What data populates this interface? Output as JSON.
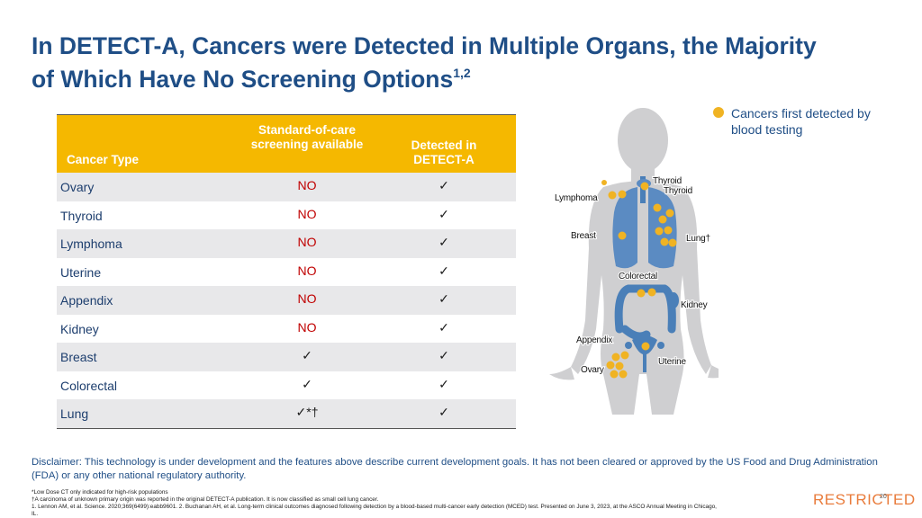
{
  "title": "In DETECT-A, Cancers were Detected in Multiple Organs, the Majority of Which Have No Screening Options",
  "title_sup": "1,2",
  "table": {
    "headers": {
      "type": "Cancer Type",
      "soc": "Standard-of-care screening available",
      "detected": "Detected in DETECT-A"
    },
    "rows": [
      {
        "type": "Ovary",
        "soc": "NO",
        "detected": "✓"
      },
      {
        "type": "Thyroid",
        "soc": "NO",
        "detected": "✓"
      },
      {
        "type": "Lymphoma",
        "soc": "NO",
        "detected": "✓"
      },
      {
        "type": "Uterine",
        "soc": "NO",
        "detected": "✓"
      },
      {
        "type": "Appendix",
        "soc": "NO",
        "detected": "✓"
      },
      {
        "type": "Kidney",
        "soc": "NO",
        "detected": "✓"
      },
      {
        "type": "Breast",
        "soc": "✓",
        "detected": "✓"
      },
      {
        "type": "Colorectal",
        "soc": "✓",
        "detected": "✓"
      },
      {
        "type": "Lung",
        "soc": "✓*†",
        "detected": "✓"
      }
    ]
  },
  "legend": {
    "text": "Cancers first detected by blood testing",
    "dot_color": "#f0b323"
  },
  "figure_labels": {
    "thyroid_1": "Thyroid",
    "thyroid_2": "Thyroid",
    "lymphoma": "Lymphoma",
    "breast": "Breast",
    "lung": "Lung†",
    "colorectal": "Colorectal",
    "kidney": "Kidney",
    "appendix": "Appendix",
    "uterine": "Uterine",
    "ovary": "Ovary"
  },
  "disclaimer": "Disclaimer: This technology is under development and the features above describe current development goals. It has not been cleared or approved by the US Food and Drug Administration (FDA) or any other national regulatory authority.",
  "footnotes": {
    "f1": "*Low Dose CT only indicated for high-risk populations",
    "f2": "†A carcinoma of unknown primary origin was reported in the original DETECT-A publication. It is now classified as small cell lung cancer.",
    "f3": "1. Lennon AM, et al. Science. 2020;369(6499):eabb9601.  2. Buchanan AH, et al. Long-term clinical outcomes diagnosed following detection by a blood-based multi-cancer early detection (MCED) test. Presented on June 3, 2023, at the ASCO Annual Meeting in Chicago,",
    "f4": "IL."
  },
  "restricted": "RESTRICTED",
  "page_number": "20",
  "colors": {
    "title": "#1f4e86",
    "header_bg": "#f5b800",
    "no_red": "#c00000",
    "dot": "#f0b323",
    "organ_blue": "#4a7fb8",
    "body_gray": "#cfcfd1",
    "restricted": "#e97c3c"
  }
}
